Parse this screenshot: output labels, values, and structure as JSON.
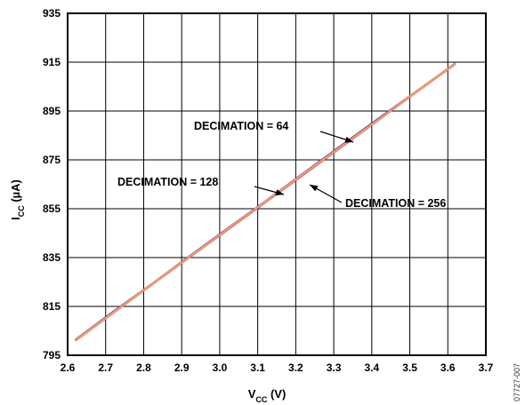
{
  "chart_data": {
    "type": "line",
    "xlabel_main": "V",
    "xlabel_sub": "CC",
    "xlabel_unit": " (V)",
    "ylabel_main": "I",
    "ylabel_sub": "CC",
    "ylabel_unit": " (µA)",
    "xlim": [
      2.6,
      3.7
    ],
    "ylim": [
      795,
      935
    ],
    "x_ticks": [
      "2.6",
      "2.7",
      "2.8",
      "2.9",
      "3.0",
      "3.1",
      "3.2",
      "3.3",
      "3.4",
      "3.5",
      "3.6",
      "3.7"
    ],
    "y_ticks": [
      "795",
      "815",
      "835",
      "855",
      "875",
      "895",
      "915",
      "935"
    ],
    "grid": true,
    "series": [
      {
        "name": "DECIMATION = 64",
        "color": "#1f2fa8",
        "x": [
          2.62,
          2.72,
          2.82,
          2.92,
          3.02,
          3.12,
          3.22,
          3.32,
          3.42,
          3.52,
          3.62
        ],
        "y": [
          801.2,
          812.8,
          824.0,
          835.4,
          846.8,
          857.9,
          869.4,
          880.8,
          892.1,
          903.3,
          914.5
        ]
      },
      {
        "name": "DECIMATION = 128",
        "color": "#c2185b",
        "x": [
          2.62,
          2.72,
          2.82,
          2.92,
          3.02,
          3.12,
          3.22,
          3.32,
          3.42,
          3.52,
          3.62
        ],
        "y": [
          801.0,
          812.4,
          823.8,
          835.1,
          846.4,
          857.7,
          869.0,
          880.3,
          891.7,
          903.1,
          914.3
        ]
      },
      {
        "name": "DECIMATION = 256",
        "color": "#f29c6b",
        "x": [
          2.62,
          2.72,
          2.82,
          2.92,
          3.02,
          3.12,
          3.22,
          3.32,
          3.42,
          3.52,
          3.62
        ],
        "y": [
          801.1,
          812.5,
          823.9,
          835.2,
          846.6,
          857.8,
          869.2,
          880.5,
          891.8,
          903.2,
          914.4
        ]
      }
    ],
    "annotations": [
      {
        "text": "DECIMATION = 64"
      },
      {
        "text": "DECIMATION = 128"
      },
      {
        "text": "DECIMATION = 256"
      }
    ]
  },
  "figure_id": "07727-007"
}
